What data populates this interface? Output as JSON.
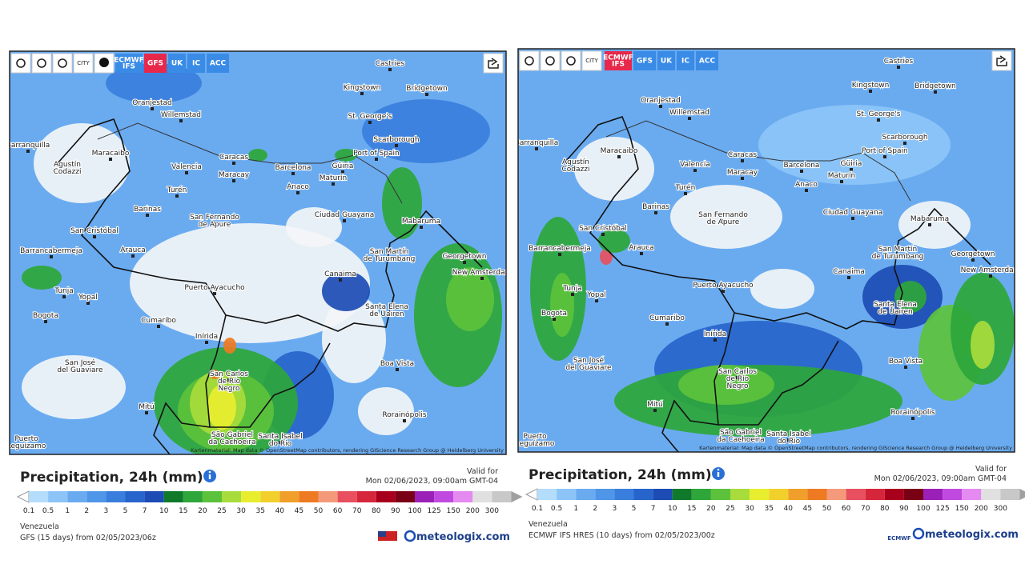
{
  "panels": [
    {
      "toolbar": {
        "city": "CITY",
        "models": [
          [
            "ECMWF",
            "IFS"
          ],
          "GFS",
          "UK",
          "IC",
          "ACC"
        ],
        "active_model": "GFS"
      },
      "attribution": "Kartenmaterial: Map data © OpenStreetMap contributors, rendering GIScience Research Group @ Heidelberg University",
      "title": "Precipitation, 24h (mm)",
      "valid_label": "Valid for",
      "valid_time": "Mon 02/06/2023, 09:00am GMT-04",
      "region": "Venezuela",
      "model_run": "GFS  (15 days)  from 02/05/2023/06z",
      "brand": "meteologix.com"
    },
    {
      "toolbar": {
        "city": "CITY",
        "models": [
          [
            "ECMWF",
            "IFS"
          ],
          "GFS",
          "UK",
          "IC",
          "ACC"
        ],
        "active_model": "ECMWF"
      },
      "attribution": "Kartenmaterial: Map data © OpenStreetMap contributors, rendering GIScience Research Group @ Heidelberg University",
      "title": "Precipitation, 24h (mm)",
      "valid_label": "Valid for",
      "valid_time": "Mon 02/06/2023, 09:00am GMT-04",
      "region": "Venezuela",
      "model_run": "ECMWF IFS HRES  (10 days)  from 02/05/2023/00z",
      "brand": "meteologix.com",
      "logo_text": "ECMWF"
    }
  ],
  "cities": [
    "Castries",
    "Kingstown",
    "Bridgetown",
    "Oranjestad",
    "Willemstad",
    "St. George's",
    "Scarborough",
    "Barranquilla",
    "Maracaibo",
    "Port of Spain",
    "Caracas",
    [
      "Agustín",
      "Codazzi"
    ],
    "Valencia",
    "Barcelona",
    "Güiria",
    "Maracay",
    "Maturín",
    "Turén",
    "Anaco",
    "Barinas",
    "Mabaruma",
    "Ciudad Guayana",
    [
      "San Fernando",
      "de Apure"
    ],
    "San Cristóbal",
    "Barrancabermeja",
    "Arauca",
    [
      "San Martín",
      "de Turumbang"
    ],
    "Georgetown",
    "New Amsterdam",
    "Canaima",
    "Puerto Ayacucho",
    "Tunja",
    "Yopal",
    [
      "Santa Elena",
      "de Uairen"
    ],
    "Bogota",
    "Cumaribo",
    "Inírida",
    [
      "San José",
      "del Guaviare"
    ],
    "Boa Vista",
    [
      "San Carlos",
      "de Río",
      "Negro"
    ],
    "Mitú",
    "Rorainópolis",
    [
      "São Gabriel",
      "da Cachoeira"
    ],
    [
      "Santa Isabel",
      "do Rio"
    ],
    [
      "Puerto",
      "Leguízamo"
    ]
  ],
  "legend": {
    "labels": [
      "0.1",
      "0.5",
      "1",
      "2",
      "3",
      "5",
      "7",
      "10",
      "15",
      "20",
      "25",
      "30",
      "35",
      "40",
      "45",
      "50",
      "60",
      "70",
      "80",
      "90",
      "100",
      "125",
      "150",
      "200",
      "300"
    ],
    "colors": [
      "#ffffff",
      "#b4dcfb",
      "#8cc4f7",
      "#6aabf0",
      "#4f95e8",
      "#3a7edd",
      "#2764cb",
      "#1c4cb4",
      "#0f7a2a",
      "#2ea63a",
      "#5cc23c",
      "#a8dc3c",
      "#e8ee2e",
      "#f2d02c",
      "#f0a02a",
      "#ee7a22",
      "#f49a7a",
      "#e85060",
      "#d6263c",
      "#a8001c",
      "#7a0016",
      "#9a20b8",
      "#c04ae0",
      "#e48af0",
      "#e0e0e0",
      "#c8c8c8",
      "#a0a0a0"
    ]
  }
}
